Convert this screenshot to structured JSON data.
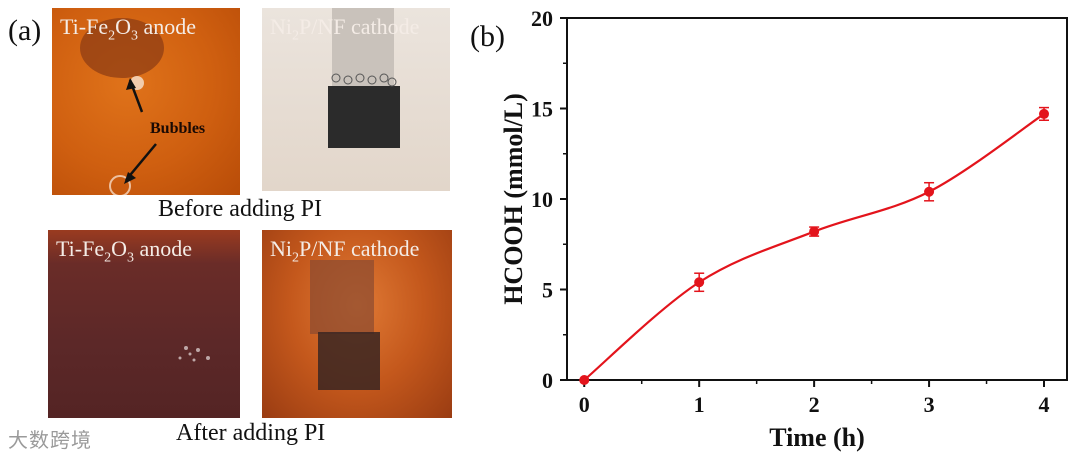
{
  "panel_a": {
    "label": "(a)",
    "photos": [
      {
        "title_main": "Ti-Fe",
        "title_sub": "2",
        "title_mid": "O",
        "title_sub2": "3",
        "title_end": " anode"
      },
      {
        "title_main": "Ni",
        "title_sub": "2",
        "title_end": "P/NF cathode"
      },
      {
        "title_main": "Ti-Fe",
        "title_sub": "2",
        "title_mid": "O",
        "title_sub2": "3",
        "title_end": " anode"
      },
      {
        "title_main": "Ni",
        "title_sub": "2",
        "title_end": "P/NF cathode"
      }
    ],
    "bubbles_label": "Bubbles",
    "caption_before": "Before adding PI",
    "caption_after": "After adding PI"
  },
  "watermark": "大数跨境",
  "chart_data": {
    "panel_label": "(b)",
    "type": "line",
    "xlabel": "Time (h)",
    "ylabel": "HCOOH (mmol/L)",
    "xlim": [
      -0.15,
      4.2
    ],
    "ylim": [
      0,
      20
    ],
    "xticks": [
      0,
      1,
      2,
      3,
      4
    ],
    "yticks": [
      0,
      5,
      10,
      15,
      20
    ],
    "color": "#e3141c",
    "x": [
      0,
      1,
      2,
      3,
      4
    ],
    "y": [
      0,
      5.4,
      8.2,
      10.4,
      14.7
    ],
    "yerr": [
      0,
      0.5,
      0.25,
      0.5,
      0.35
    ],
    "fit": "smooth curve"
  }
}
